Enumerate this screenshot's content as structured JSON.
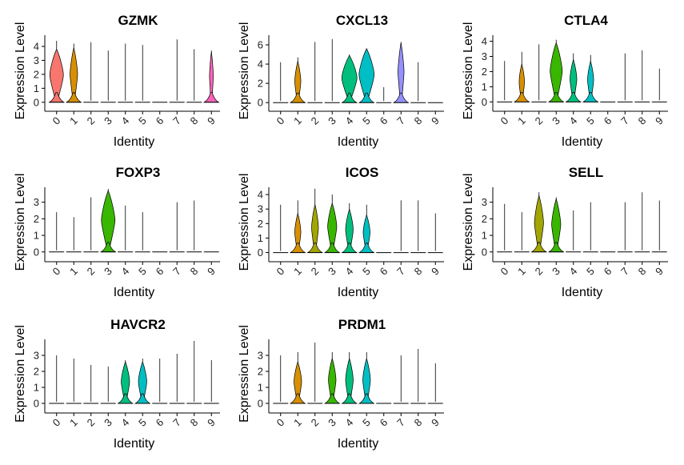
{
  "chart_data": [
    {
      "type": "violin",
      "title": "GZMK",
      "ylabel": "Expression Level",
      "xlabel": "Identity",
      "ylim": [
        -0.3,
        4.8
      ],
      "yticks": [
        "0",
        "1",
        "2",
        "3",
        "4"
      ],
      "categories": [
        "0",
        "1",
        "2",
        "3",
        "4",
        "5",
        "6",
        "7",
        "8",
        "9"
      ],
      "series": [
        {
          "category": "0",
          "color": "#F8766D",
          "max": 4.4,
          "upper": [
            0.1,
            3.8,
            0.9
          ]
        },
        {
          "category": "1",
          "color": "#D89000",
          "max": 4.2,
          "upper": [
            0.08,
            3.9,
            0.5
          ]
        },
        {
          "category": "2",
          "color": "#A3A500",
          "max": 4.3,
          "upper": null
        },
        {
          "category": "3",
          "color": "#39B600",
          "max": 3.7,
          "upper": null
        },
        {
          "category": "4",
          "color": "#00BF7D",
          "max": 4.2,
          "upper": null
        },
        {
          "category": "5",
          "color": "#00BFC4",
          "max": 4.1,
          "upper": null
        },
        {
          "category": "6",
          "color": "#00B0F6",
          "max": 0,
          "upper": null
        },
        {
          "category": "7",
          "color": "#9590FF",
          "max": 4.5,
          "upper": null
        },
        {
          "category": "8",
          "color": "#E76BF3",
          "max": 3.8,
          "upper": null
        },
        {
          "category": "9",
          "color": "#FF62BC",
          "max": 3.7,
          "upper": [
            0.1,
            3.6,
            0.25
          ]
        }
      ]
    },
    {
      "type": "violin",
      "title": "CXCL13",
      "ylabel": "Expression Level",
      "xlabel": "Identity",
      "ylim": [
        -0.4,
        7.0
      ],
      "yticks": [
        "0",
        "2",
        "4",
        "6"
      ],
      "categories": [
        "0",
        "1",
        "2",
        "3",
        "4",
        "5",
        "6",
        "7",
        "8",
        "9"
      ],
      "series": [
        {
          "category": "0",
          "color": "#F8766D",
          "max": 4.2,
          "upper": null
        },
        {
          "category": "1",
          "color": "#D89000",
          "max": 4.7,
          "upper": [
            0.1,
            4.3,
            0.4
          ]
        },
        {
          "category": "2",
          "color": "#A3A500",
          "max": 6.3,
          "upper": null
        },
        {
          "category": "3",
          "color": "#39B600",
          "max": 6.6,
          "upper": null
        },
        {
          "category": "4",
          "color": "#00BF7D",
          "max": 5.0,
          "upper": [
            0.2,
            4.9,
            1.0
          ]
        },
        {
          "category": "5",
          "color": "#00BFC4",
          "max": 5.6,
          "upper": [
            0.2,
            5.6,
            1.0
          ]
        },
        {
          "category": "6",
          "color": "#00B0F6",
          "max": 1.6,
          "upper": null
        },
        {
          "category": "7",
          "color": "#9590FF",
          "max": 6.3,
          "upper": [
            0.1,
            6.2,
            0.4
          ]
        },
        {
          "category": "8",
          "color": "#E76BF3",
          "max": 4.2,
          "upper": null
        },
        {
          "category": "9",
          "color": "#FF62BC",
          "max": 0,
          "upper": null
        }
      ]
    },
    {
      "type": "violin",
      "title": "CTLA4",
      "ylabel": "Expression Level",
      "xlabel": "Identity",
      "ylim": [
        -0.3,
        4.4
      ],
      "yticks": [
        "0",
        "1",
        "2",
        "3",
        "4"
      ],
      "categories": [
        "0",
        "1",
        "2",
        "3",
        "4",
        "5",
        "6",
        "7",
        "8",
        "9"
      ],
      "series": [
        {
          "category": "0",
          "color": "#F8766D",
          "max": 2.7,
          "upper": null
        },
        {
          "category": "1",
          "color": "#D89000",
          "max": 3.3,
          "upper": [
            0.1,
            2.5,
            0.35
          ]
        },
        {
          "category": "2",
          "color": "#A3A500",
          "max": 3.8,
          "upper": null
        },
        {
          "category": "3",
          "color": "#39B600",
          "max": 4.1,
          "upper": [
            0.15,
            3.9,
            0.8
          ]
        },
        {
          "category": "4",
          "color": "#00BF7D",
          "max": 3.2,
          "upper": [
            0.2,
            2.8,
            0.45
          ]
        },
        {
          "category": "5",
          "color": "#00BFC4",
          "max": 3.1,
          "upper": [
            0.2,
            2.7,
            0.4
          ]
        },
        {
          "category": "6",
          "color": "#00B0F6",
          "max": 0,
          "upper": null
        },
        {
          "category": "7",
          "color": "#9590FF",
          "max": 3.2,
          "upper": null
        },
        {
          "category": "8",
          "color": "#E76BF3",
          "max": 3.4,
          "upper": null
        },
        {
          "category": "9",
          "color": "#FF62BC",
          "max": 2.2,
          "upper": null
        }
      ]
    },
    {
      "type": "violin",
      "title": "FOXP3",
      "ylabel": "Expression Level",
      "xlabel": "Identity",
      "ylim": [
        -0.3,
        3.9
      ],
      "yticks": [
        "0",
        "1",
        "2",
        "3"
      ],
      "categories": [
        "0",
        "1",
        "2",
        "3",
        "4",
        "5",
        "6",
        "7",
        "8",
        "9"
      ],
      "series": [
        {
          "category": "0",
          "color": "#F8766D",
          "max": 2.4,
          "upper": null
        },
        {
          "category": "1",
          "color": "#D89000",
          "max": 2.1,
          "upper": null
        },
        {
          "category": "2",
          "color": "#A3A500",
          "max": 3.3,
          "upper": null
        },
        {
          "category": "3",
          "color": "#39B600",
          "max": 3.8,
          "upper": [
            0.1,
            3.7,
            0.9
          ]
        },
        {
          "category": "4",
          "color": "#00BF7D",
          "max": 2.8,
          "upper": null
        },
        {
          "category": "5",
          "color": "#00BFC4",
          "max": 2.4,
          "upper": null
        },
        {
          "category": "6",
          "color": "#00B0F6",
          "max": 0,
          "upper": null
        },
        {
          "category": "7",
          "color": "#9590FF",
          "max": 3.0,
          "upper": null
        },
        {
          "category": "8",
          "color": "#E76BF3",
          "max": 3.1,
          "upper": null
        },
        {
          "category": "9",
          "color": "#FF62BC",
          "max": 0,
          "upper": null
        }
      ]
    },
    {
      "type": "violin",
      "title": "ICOS",
      "ylabel": "Expression Level",
      "xlabel": "Identity",
      "ylim": [
        -0.3,
        4.5
      ],
      "yticks": [
        "0",
        "1",
        "2",
        "3",
        "4"
      ],
      "categories": [
        "0",
        "1",
        "2",
        "3",
        "4",
        "5",
        "6",
        "7",
        "8",
        "9"
      ],
      "series": [
        {
          "category": "0",
          "color": "#F8766D",
          "max": 3.3,
          "upper": null
        },
        {
          "category": "1",
          "color": "#D89000",
          "max": 3.6,
          "upper": [
            0.1,
            2.7,
            0.4
          ]
        },
        {
          "category": "2",
          "color": "#A3A500",
          "max": 4.4,
          "upper": [
            0.12,
            3.3,
            0.45
          ]
        },
        {
          "category": "3",
          "color": "#39B600",
          "max": 4.0,
          "upper": [
            0.15,
            3.4,
            0.6
          ]
        },
        {
          "category": "4",
          "color": "#00BF7D",
          "max": 3.4,
          "upper": [
            0.15,
            3.0,
            0.5
          ]
        },
        {
          "category": "5",
          "color": "#00BFC4",
          "max": 3.3,
          "upper": [
            0.15,
            2.6,
            0.45
          ]
        },
        {
          "category": "6",
          "color": "#00B0F6",
          "max": 0,
          "upper": null
        },
        {
          "category": "7",
          "color": "#9590FF",
          "max": 3.6,
          "upper": null
        },
        {
          "category": "8",
          "color": "#E76BF3",
          "max": 3.6,
          "upper": null
        },
        {
          "category": "9",
          "color": "#FF62BC",
          "max": 2.7,
          "upper": null
        }
      ]
    },
    {
      "type": "violin",
      "title": "SELL",
      "ylabel": "Expression Level",
      "xlabel": "Identity",
      "ylim": [
        -0.3,
        3.9
      ],
      "yticks": [
        "0",
        "1",
        "2",
        "3"
      ],
      "categories": [
        "0",
        "1",
        "2",
        "3",
        "4",
        "5",
        "6",
        "7",
        "8",
        "9"
      ],
      "series": [
        {
          "category": "0",
          "color": "#F8766D",
          "max": 2.9,
          "upper": null
        },
        {
          "category": "1",
          "color": "#D89000",
          "max": 2.4,
          "upper": null
        },
        {
          "category": "2",
          "color": "#A3A500",
          "max": 3.6,
          "upper": [
            0.1,
            3.4,
            0.6
          ]
        },
        {
          "category": "3",
          "color": "#39B600",
          "max": 3.3,
          "upper": [
            0.1,
            3.2,
            0.6
          ]
        },
        {
          "category": "4",
          "color": "#00BF7D",
          "max": 2.5,
          "upper": null
        },
        {
          "category": "5",
          "color": "#00BFC4",
          "max": 3.0,
          "upper": null
        },
        {
          "category": "6",
          "color": "#00B0F6",
          "max": 0,
          "upper": null
        },
        {
          "category": "7",
          "color": "#9590FF",
          "max": 3.0,
          "upper": null
        },
        {
          "category": "8",
          "color": "#E76BF3",
          "max": 3.6,
          "upper": null
        },
        {
          "category": "9",
          "color": "#FF62BC",
          "max": 3.1,
          "upper": null
        }
      ]
    },
    {
      "type": "violin",
      "title": "HAVCR2",
      "ylabel": "Expression Level",
      "xlabel": "Identity",
      "ylim": [
        -0.3,
        4.0
      ],
      "yticks": [
        "0",
        "1",
        "2",
        "3"
      ],
      "categories": [
        "0",
        "1",
        "2",
        "3",
        "4",
        "5",
        "6",
        "7",
        "8",
        "9"
      ],
      "series": [
        {
          "category": "0",
          "color": "#F8766D",
          "max": 3.0,
          "upper": null
        },
        {
          "category": "1",
          "color": "#D89000",
          "max": 2.8,
          "upper": null
        },
        {
          "category": "2",
          "color": "#A3A500",
          "max": 2.4,
          "upper": null
        },
        {
          "category": "3",
          "color": "#39B600",
          "max": 2.3,
          "upper": null
        },
        {
          "category": "4",
          "color": "#00BF7D",
          "max": 2.7,
          "upper": [
            0.1,
            2.6,
            0.55
          ]
        },
        {
          "category": "5",
          "color": "#00BFC4",
          "max": 2.8,
          "upper": [
            0.1,
            2.6,
            0.55
          ]
        },
        {
          "category": "6",
          "color": "#00B0F6",
          "max": 2.8,
          "upper": null
        },
        {
          "category": "7",
          "color": "#9590FF",
          "max": 3.1,
          "upper": null
        },
        {
          "category": "8",
          "color": "#E76BF3",
          "max": 3.9,
          "upper": null
        },
        {
          "category": "9",
          "color": "#FF62BC",
          "max": 2.7,
          "upper": null
        }
      ]
    },
    {
      "type": "violin",
      "title": "PRDM1",
      "ylabel": "Expression Level",
      "xlabel": "Identity",
      "ylim": [
        -0.3,
        4.0
      ],
      "yticks": [
        "0",
        "1",
        "2",
        "3"
      ],
      "categories": [
        "0",
        "1",
        "2",
        "3",
        "4",
        "5",
        "6",
        "7",
        "8",
        "9"
      ],
      "series": [
        {
          "category": "0",
          "color": "#F8766D",
          "max": 3.0,
          "upper": null
        },
        {
          "category": "1",
          "color": "#D89000",
          "max": 3.2,
          "upper": [
            0.1,
            2.6,
            0.5
          ]
        },
        {
          "category": "2",
          "color": "#A3A500",
          "max": 3.8,
          "upper": null
        },
        {
          "category": "3",
          "color": "#39B600",
          "max": 3.2,
          "upper": [
            0.1,
            2.8,
            0.5
          ]
        },
        {
          "category": "4",
          "color": "#00BF7D",
          "max": 3.2,
          "upper": [
            0.1,
            2.8,
            0.5
          ]
        },
        {
          "category": "5",
          "color": "#00BFC4",
          "max": 3.2,
          "upper": [
            0.1,
            2.8,
            0.5
          ]
        },
        {
          "category": "6",
          "color": "#00B0F6",
          "max": 0,
          "upper": null
        },
        {
          "category": "7",
          "color": "#9590FF",
          "max": 3.0,
          "upper": null
        },
        {
          "category": "8",
          "color": "#E76BF3",
          "max": 3.4,
          "upper": null
        },
        {
          "category": "9",
          "color": "#FF62BC",
          "max": 2.5,
          "upper": null
        }
      ]
    }
  ]
}
